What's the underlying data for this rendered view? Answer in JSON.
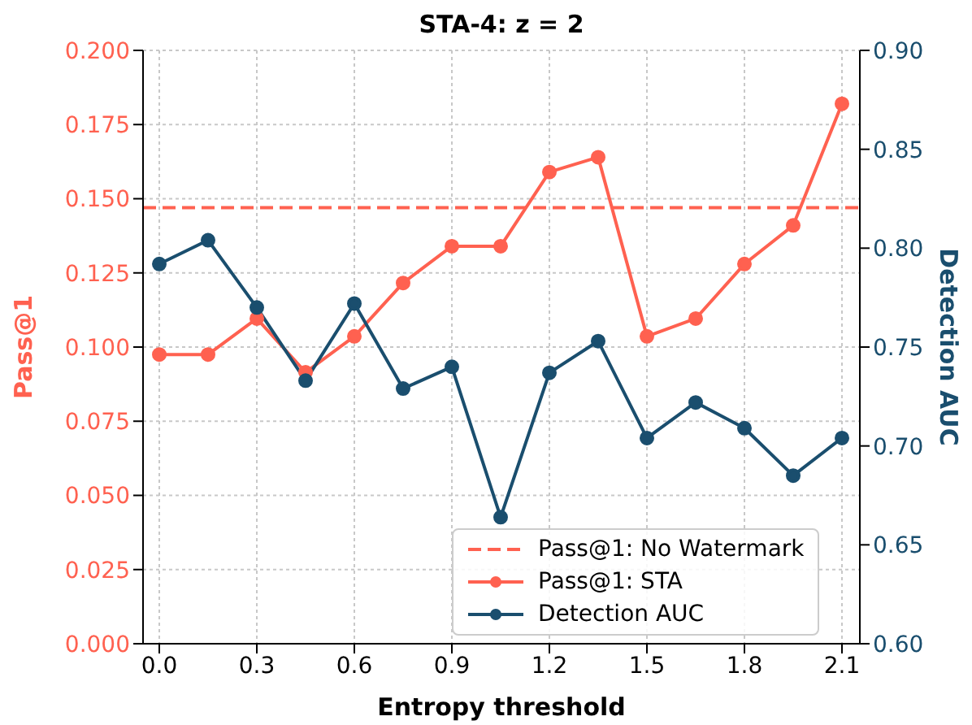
{
  "chart_data": {
    "type": "line",
    "title": "STA-4: z = 2",
    "xlabel": "Entropy threshold",
    "ylabel": "Pass@1",
    "y2label": "Detection AUC",
    "x": [
      0.0,
      0.15,
      0.3,
      0.45,
      0.6,
      0.75,
      0.9,
      1.05,
      1.2,
      1.35,
      1.5,
      1.65,
      1.8,
      1.95,
      2.1
    ],
    "xlim": [
      -0.05,
      2.155
    ],
    "xticks": [
      {
        "value": 0,
        "label": "0.0"
      },
      0.3,
      0.6,
      0.9,
      1.2,
      1.5,
      1.8,
      2.1
    ],
    "ylim": [
      0,
      0.2
    ],
    "yticks": [
      {
        "value": 0,
        "label": "0.000"
      },
      0.025,
      {
        "value": 0.05,
        "label": "0.050"
      },
      0.075,
      {
        "value": 0.1,
        "label": "0.100"
      },
      0.125,
      {
        "value": 0.15,
        "label": "0.150"
      },
      0.175,
      {
        "value": 0.2,
        "label": "0.200"
      }
    ],
    "y2lim": [
      0.6,
      0.9
    ],
    "y2ticks": [
      {
        "value": 0.6,
        "label": "0.60"
      },
      0.65,
      {
        "value": 0.7,
        "label": "0.70"
      },
      0.75,
      {
        "value": 0.8,
        "label": "0.80"
      },
      0.85,
      {
        "value": 0.9,
        "label": "0.90"
      }
    ],
    "series": [
      {
        "name": "Pass@1: STA",
        "color": "#ff6150",
        "values": [
          0.0975,
          0.0975,
          0.1096,
          0.0915,
          0.1036,
          0.1216,
          0.134,
          0.134,
          0.159,
          0.164,
          0.1036,
          0.1096,
          0.128,
          0.141,
          0.182
        ]
      },
      {
        "name": "Detection AUC",
        "color": "#1a4e6e",
        "axis": "y2",
        "values": [
          0.792,
          0.804,
          0.77,
          0.733,
          0.772,
          0.729,
          0.74,
          0.664,
          0.737,
          0.753,
          0.704,
          0.722,
          0.709,
          0.685,
          0.704
        ]
      }
    ],
    "ref_lines": [
      {
        "axis": "y",
        "value": 0.147,
        "label": "Pass@1: No Watermark",
        "color": "#ff6150",
        "line_style": "dashed"
      }
    ],
    "grid": true,
    "legend": "bottom right",
    "marker": "circle",
    "line_style": "solid"
  }
}
